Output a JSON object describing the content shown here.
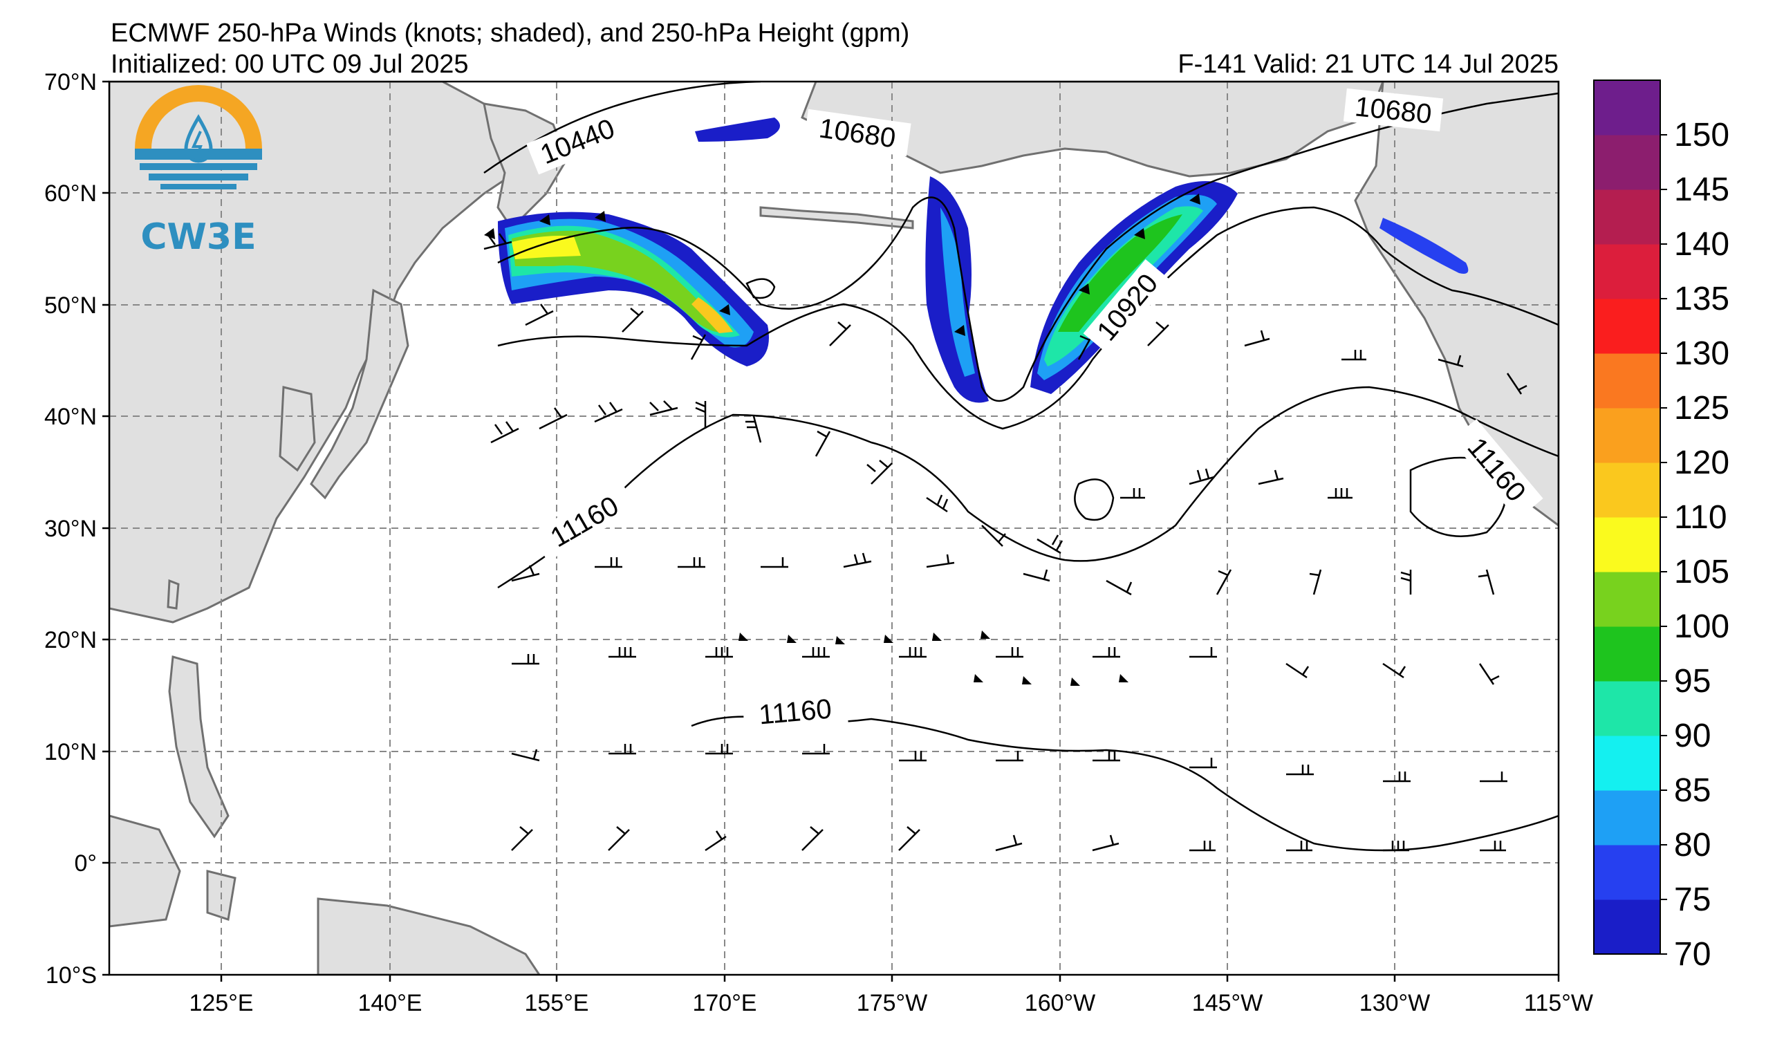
{
  "header": {
    "title": "ECMWF 250-hPa Winds (knots; shaded), and 250-hPa Height (gpm)",
    "initialized": "Initialized: 00 UTC 09 Jul 2025",
    "valid": "F-141  Valid: 21 UTC 14 Jul 2025"
  },
  "logo": {
    "text": "CW3E",
    "icon": "cw3e-water-drop-logo-icon"
  },
  "axes": {
    "lat_labels": [
      "70°N",
      "60°N",
      "50°N",
      "40°N",
      "30°N",
      "20°N",
      "10°N",
      "0°",
      "10°S"
    ],
    "lon_labels": [
      "125°E",
      "140°E",
      "155°E",
      "170°E",
      "175°W",
      "160°W",
      "145°W",
      "130°W",
      "115°W"
    ]
  },
  "contour_labels": [
    {
      "text": "10440"
    },
    {
      "text": "10680"
    },
    {
      "text": "10680"
    },
    {
      "text": "10920"
    },
    {
      "text": "11160"
    },
    {
      "text": "11160"
    },
    {
      "text": "11160"
    }
  ],
  "colorbar": {
    "labels": [
      "70",
      "75",
      "80",
      "85",
      "90",
      "95",
      "100",
      "105",
      "110",
      "120",
      "125",
      "130",
      "135",
      "140",
      "145",
      "150"
    ],
    "colors": [
      "#1a1ec8",
      "#2640f0",
      "#1ea0f5",
      "#14f0f0",
      "#1ee6a8",
      "#1ec41e",
      "#78d21e",
      "#fafa1e",
      "#fac81e",
      "#faa01e",
      "#fa7820",
      "#fa1e1e",
      "#dc1e3c",
      "#b41e50",
      "#8c1e6e",
      "#6e1e8c"
    ]
  },
  "map_colors": {
    "land": "#e0e0e0",
    "ocean": "#ffffff",
    "grid": "#888888",
    "coast": "#707070"
  }
}
